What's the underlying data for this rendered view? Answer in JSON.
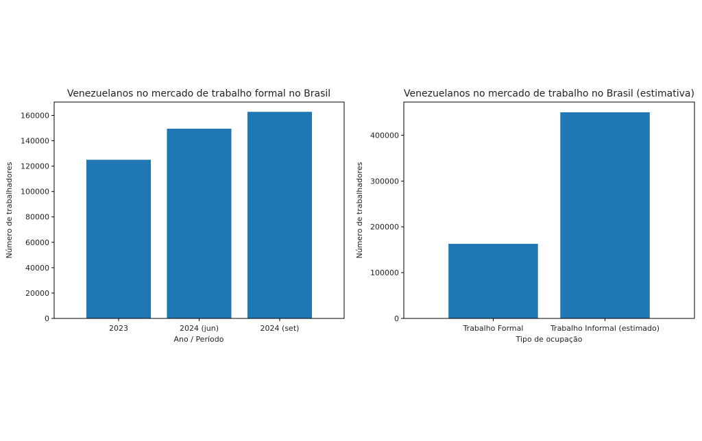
{
  "colors": {
    "bar": "#1f77b4",
    "axis": "#000000",
    "background": "#ffffff"
  },
  "chart_data": [
    {
      "type": "bar",
      "title": "Venezuelanos no mercado de trabalho formal no Brasil",
      "xlabel": "Ano / Período",
      "ylabel": "Número de trabalhadores",
      "categories": [
        "2023",
        "2024 (jun)",
        "2024 (set)"
      ],
      "values": [
        125000,
        149500,
        162800
      ],
      "ylim": [
        0,
        170500
      ],
      "yticks": [
        0,
        20000,
        40000,
        60000,
        80000,
        100000,
        120000,
        140000,
        160000
      ],
      "grid": false,
      "legend": "none"
    },
    {
      "type": "bar",
      "title": "Venezuelanos no mercado de trabalho no Brasil (estimativa)",
      "xlabel": "Tipo de ocupação",
      "ylabel": "Número de trabalhadores",
      "categories": [
        "Trabalho Formal",
        "Trabalho Informal (estimado)"
      ],
      "values": [
        162800,
        450000
      ],
      "ylim": [
        0,
        472500
      ],
      "yticks": [
        0,
        100000,
        200000,
        300000,
        400000
      ],
      "grid": false,
      "legend": "none"
    }
  ]
}
